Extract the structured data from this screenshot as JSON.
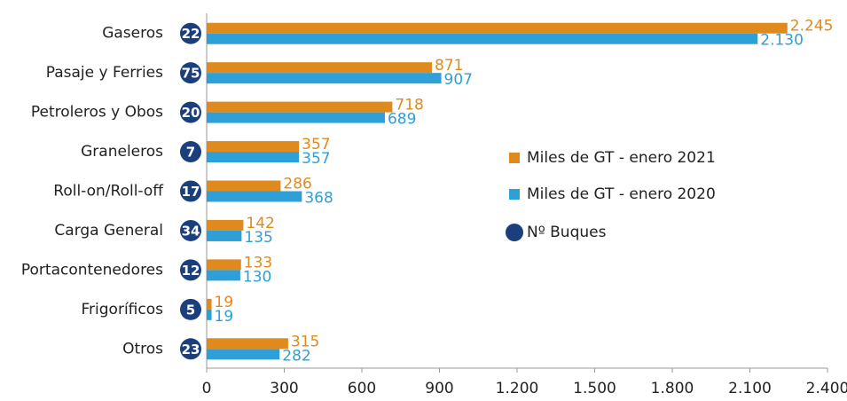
{
  "chart_data": {
    "type": "bar",
    "orientation": "horizontal",
    "categories": [
      "Gaseros",
      "Pasaje y Ferries",
      "Petroleros  y Obos",
      "Graneleros",
      "Roll-on/Roll-off",
      "Carga General",
      "Portacontenedores",
      "Frigoríficos",
      "Otros"
    ],
    "series": [
      {
        "name": "Miles de GT - enero 2021",
        "color": "#e08a1e",
        "values": [
          2245,
          871,
          718,
          357,
          286,
          142,
          133,
          19,
          315
        ],
        "value_labels": [
          "2.245",
          "871",
          "718",
          "357",
          "286",
          "142",
          "133",
          "19",
          "315"
        ]
      },
      {
        "name": "Miles de GT - enero 2020",
        "color": "#2f9fd8",
        "values": [
          2130,
          907,
          689,
          357,
          368,
          135,
          130,
          19,
          282
        ],
        "value_labels": [
          "2.130",
          "907",
          "689",
          "357",
          "368",
          "135",
          "130",
          "19",
          "282"
        ]
      }
    ],
    "badges": {
      "name": "Nº Buques",
      "color": "#1b3f7d",
      "values": [
        22,
        75,
        20,
        7,
        17,
        34,
        12,
        5,
        23
      ]
    },
    "xlim": [
      0,
      2400
    ],
    "xticks": [
      0,
      300,
      600,
      900,
      {
        "value": 1200,
        "label": "1.200"
      },
      {
        "value": 1500,
        "label": "1.500"
      },
      {
        "value": 1800,
        "label": "1.800"
      },
      {
        "value": 2100,
        "label": "2.100"
      },
      {
        "value": 2400,
        "label": "2.400"
      }
    ],
    "legend": "right"
  }
}
